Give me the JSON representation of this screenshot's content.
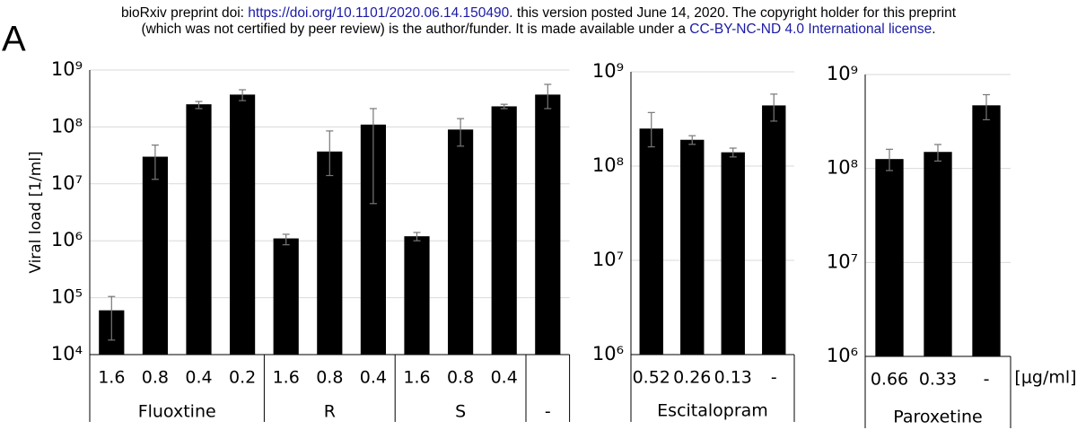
{
  "header": {
    "prefix": "bioRxiv preprint doi: ",
    "doi": "https://doi.org/10.1101/2020.06.14.150490",
    "line1_rest": ". this version posted June 14, 2020. The copyright holder for this preprint",
    "line2": "(which was not certified by peer review) is the author/funder. It is made available under a ",
    "license": "CC-BY-NC-ND 4.0 International license",
    "line2_end": "."
  },
  "panel_label": "A",
  "unit_label": "[μg/ml]",
  "chart_data": [
    {
      "type": "bar",
      "ylabel": "Viral load [1/ml]",
      "log_scale": true,
      "grid": true,
      "color": "#000000",
      "ylim": [
        10000,
        1000000000
      ],
      "yticks": [
        {
          "value": 10000,
          "label": "10⁴"
        },
        {
          "value": 100000,
          "label": "10⁵"
        },
        {
          "value": 1000000,
          "label": "10⁶"
        },
        {
          "value": 10000000,
          "label": "10⁷"
        },
        {
          "value": 100000000,
          "label": "10⁸"
        },
        {
          "value": 1000000000,
          "label": "10⁹"
        }
      ],
      "groups": [
        {
          "name": "Fluoxtine",
          "categories": [
            "1.6",
            "0.8",
            "0.4",
            "0.2"
          ],
          "values": [
            60000,
            30000000,
            250000000,
            370000000
          ],
          "err_lo": [
            18000,
            12000000,
            210000000,
            290000000
          ],
          "err_hi": [
            105000,
            48000000,
            280000000,
            450000000
          ]
        },
        {
          "name": "R",
          "categories": [
            "1.6",
            "0.8",
            "0.4"
          ],
          "values": [
            1100000,
            37000000,
            110000000
          ],
          "err_lo": [
            850000,
            14000000,
            4500000
          ],
          "err_hi": [
            1300000,
            85000000,
            210000000
          ]
        },
        {
          "name": "S",
          "categories": [
            "1.6",
            "0.8",
            "0.4"
          ],
          "values": [
            1200000,
            90000000,
            230000000
          ],
          "err_lo": [
            1000000,
            46000000,
            210000000
          ],
          "err_hi": [
            1400000,
            140000000,
            250000000
          ]
        },
        {
          "name": "-",
          "categories": [
            null
          ],
          "values": [
            370000000
          ],
          "err_lo": [
            210000000
          ],
          "err_hi": [
            560000000
          ]
        }
      ]
    },
    {
      "type": "bar",
      "log_scale": true,
      "grid": true,
      "color": "#000000",
      "ylim": [
        1000000,
        1000000000
      ],
      "yticks": [
        {
          "value": 1000000,
          "label": "10⁶"
        },
        {
          "value": 10000000,
          "label": "10⁷"
        },
        {
          "value": 100000000,
          "label": "10⁸"
        },
        {
          "value": 1000000000,
          "label": "10⁹"
        }
      ],
      "groups": [
        {
          "name": "Escitalopram",
          "categories": [
            "0.52",
            "0.26",
            "0.13",
            "-"
          ],
          "values": [
            250000000,
            190000000,
            140000000,
            440000000
          ],
          "err_lo": [
            160000000,
            170000000,
            125000000,
            300000000
          ],
          "err_hi": [
            370000000,
            210000000,
            155000000,
            580000000
          ]
        }
      ]
    },
    {
      "type": "bar",
      "log_scale": true,
      "grid": true,
      "color": "#000000",
      "ylim": [
        1000000,
        1000000000
      ],
      "yticks": [
        {
          "value": 1000000,
          "label": "10⁶"
        },
        {
          "value": 10000000,
          "label": "10⁷"
        },
        {
          "value": 100000000,
          "label": "10⁸"
        },
        {
          "value": 1000000000,
          "label": "10⁹"
        }
      ],
      "groups": [
        {
          "name": "Paroxetine",
          "categories": [
            "0.66",
            "0.33",
            "-"
          ],
          "values": [
            126000000,
            150000000,
            470000000
          ],
          "err_lo": [
            95000000,
            120000000,
            330000000
          ],
          "err_hi": [
            160000000,
            180000000,
            610000000
          ]
        }
      ]
    }
  ]
}
